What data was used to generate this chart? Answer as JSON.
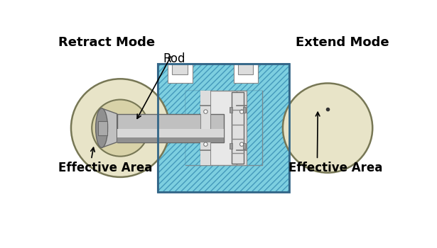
{
  "bg_color": "#ffffff",
  "retract_label": "Retract Mode",
  "extend_label": "Extend Mode",
  "rod_label": "Rod",
  "eff_area_label": "Effective Area",
  "cylinder_blue": "#7DCFE0",
  "hatch_color": "#5AAFCA",
  "bore_face_color": "#E8E4C8",
  "bore_face_inner": "#D8D2A8",
  "bore_edge_color": "#777755",
  "rod_light": "#D8D8D8",
  "rod_mid": "#C0C0C0",
  "rod_dark": "#909090",
  "piston_light": "#E0E0E0",
  "piston_dark": "#B0B0B0",
  "inner_bore_bg": "#E8E8E8",
  "white": "#FFFFFF",
  "dark_line": "#444444",
  "gray_medium": "#AAAAAA",
  "gray_light": "#CCCCCC",
  "seal_gray": "#888888"
}
